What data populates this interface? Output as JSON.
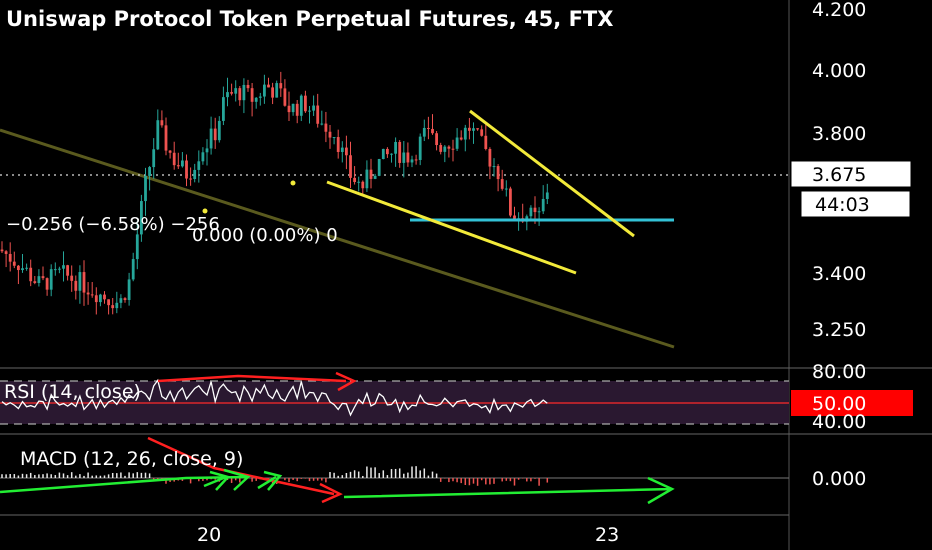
{
  "chart_data": {
    "type": "candlestick",
    "title": "Uniswap Protocol Token Perpetual Futures, 45, FTX",
    "price_panel": {
      "ylim": [
        3.14,
        4.26
      ],
      "yticks": [
        "4.200",
        "4.000",
        "3.800",
        "3.400",
        "3.250"
      ],
      "last_price_label": "3.675",
      "countdown_label": "44:03",
      "change_label": "−0.256 (−6.58%) −256",
      "measure_label": "0.000 (0.00%) 0",
      "colors": {
        "up": "#26a69a",
        "down": "#ef5350",
        "trendline": "#f2ea3a",
        "support": "#33c2d6",
        "long_trend": "#5a5a1e"
      }
    },
    "x_labels": [
      "20",
      "23"
    ],
    "rsi": {
      "label": "RSI (14, close)",
      "levels": [
        "80.00",
        "50.00",
        "40.00"
      ],
      "value_label": "50.00",
      "colors": {
        "line": "#ffffff",
        "band": "#2a1830",
        "level_badge": "#ff0000"
      }
    },
    "macd": {
      "label": "MACD (12, 26, close, 9)",
      "level": "0.000",
      "colors": {
        "hist_up": "#e8e8e8",
        "hist_down": "#ef5350",
        "arrow_up": "#22ee33",
        "arrow_down": "#ff2020"
      }
    }
  }
}
